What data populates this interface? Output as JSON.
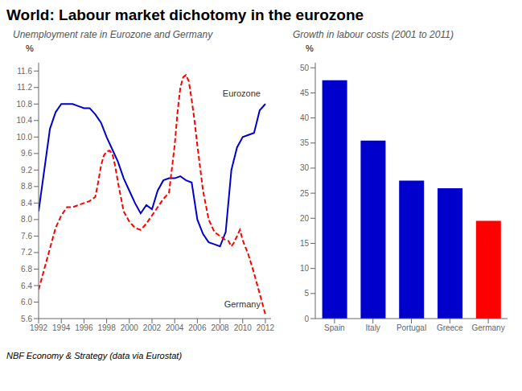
{
  "title": "World: Labour market dichotomy in the eurozone",
  "footer": "NBF Economy & Strategy (data via Eurostat)",
  "chart_data": [
    {
      "type": "line",
      "subtitle": "Unemployment rate in Eurozone and Germany",
      "ylabel": "%",
      "grid": false,
      "series": [
        {
          "name": "Eurozone",
          "color": "#0000CD",
          "line_style": "solid",
          "x": [
            1992,
            1992.5,
            1993,
            1993.5,
            1994,
            1994.5,
            1995,
            1995.5,
            1996,
            1996.5,
            1997,
            1997.5,
            1998,
            1998.5,
            1999,
            1999.5,
            2000,
            2000.5,
            2001,
            2001.5,
            2002,
            2002.5,
            2003,
            2003.5,
            2004,
            2004.5,
            2005,
            2005.5,
            2006,
            2006.5,
            2007,
            2007.5,
            2008,
            2008.5,
            2009,
            2009.5,
            2010,
            2010.5,
            2011,
            2011.5,
            2012
          ],
          "values": [
            8.2,
            9.2,
            10.2,
            10.6,
            10.8,
            10.8,
            10.8,
            10.75,
            10.7,
            10.7,
            10.55,
            10.35,
            10.0,
            9.7,
            9.4,
            9.0,
            8.7,
            8.4,
            8.15,
            8.35,
            8.25,
            8.7,
            8.95,
            9.0,
            9.0,
            9.05,
            8.95,
            8.9,
            8.0,
            7.65,
            7.45,
            7.4,
            7.35,
            7.7,
            9.2,
            9.75,
            10.0,
            10.05,
            10.1,
            10.65,
            10.8
          ]
        },
        {
          "name": "Germany",
          "color": "#FF0000",
          "line_style": "dashed",
          "x": [
            1992,
            1992.5,
            1993,
            1993.5,
            1994,
            1994.5,
            1995,
            1995.5,
            1996,
            1996.5,
            1997,
            1997.25,
            1997.5,
            1997.75,
            1998,
            1998.25,
            1998.5,
            1998.75,
            1999,
            1999.5,
            2000,
            2000.5,
            2001,
            2001.5,
            2002,
            2002.5,
            2003,
            2003.5,
            2004,
            2004.25,
            2004.5,
            2004.75,
            2005,
            2005.25,
            2005.5,
            2005.75,
            2006,
            2006.5,
            2007,
            2007.5,
            2008,
            2008.25,
            2008.5,
            2008.75,
            2009,
            2009.25,
            2009.5,
            2009.75,
            2010,
            2010.5,
            2011,
            2011.5,
            2012
          ],
          "values": [
            6.3,
            6.8,
            7.3,
            7.8,
            8.1,
            8.3,
            8.3,
            8.35,
            8.4,
            8.45,
            8.55,
            8.9,
            9.3,
            9.55,
            9.65,
            9.67,
            9.6,
            9.3,
            8.9,
            8.2,
            7.95,
            7.8,
            7.75,
            7.9,
            8.1,
            8.3,
            8.5,
            8.65,
            9.8,
            10.6,
            11.2,
            11.45,
            11.5,
            11.35,
            10.9,
            10.4,
            9.8,
            8.7,
            8.0,
            7.7,
            7.6,
            7.55,
            7.5,
            7.48,
            7.35,
            7.45,
            7.6,
            7.75,
            7.5,
            7.15,
            6.7,
            6.2,
            5.7
          ]
        }
      ],
      "xlim": [
        1992,
        2012.5
      ],
      "xticks": [
        1992,
        1994,
        1996,
        1998,
        2000,
        2002,
        2004,
        2006,
        2008,
        2010,
        2012
      ],
      "ylim": [
        5.6,
        11.8
      ],
      "yticks": [
        5.6,
        {
          "value": 6.0,
          "label": "6.0"
        },
        6.4,
        6.8,
        7.2,
        7.6,
        {
          "value": 8.0,
          "label": "8.0"
        },
        8.4,
        8.8,
        9.2,
        9.6,
        {
          "value": 10.0,
          "label": "10.0"
        },
        10.4,
        10.8,
        11.2,
        11.6
      ]
    },
    {
      "type": "bar",
      "subtitle": "Growth in labour costs (2001 to 2011)",
      "ylabel": "%",
      "grid": false,
      "categories": [
        "Spain",
        "Italy",
        "Portugal",
        "Greece",
        "Germany"
      ],
      "values": [
        47.5,
        35.5,
        27.5,
        26.0,
        19.5
      ],
      "colors": [
        "#0000CD",
        "#0000CD",
        "#0000CD",
        "#0000CD",
        "#FF0000"
      ],
      "ylim": [
        0,
        51
      ],
      "yticks": [
        0,
        5,
        10,
        15,
        20,
        25,
        30,
        35,
        40,
        45,
        50
      ]
    }
  ]
}
